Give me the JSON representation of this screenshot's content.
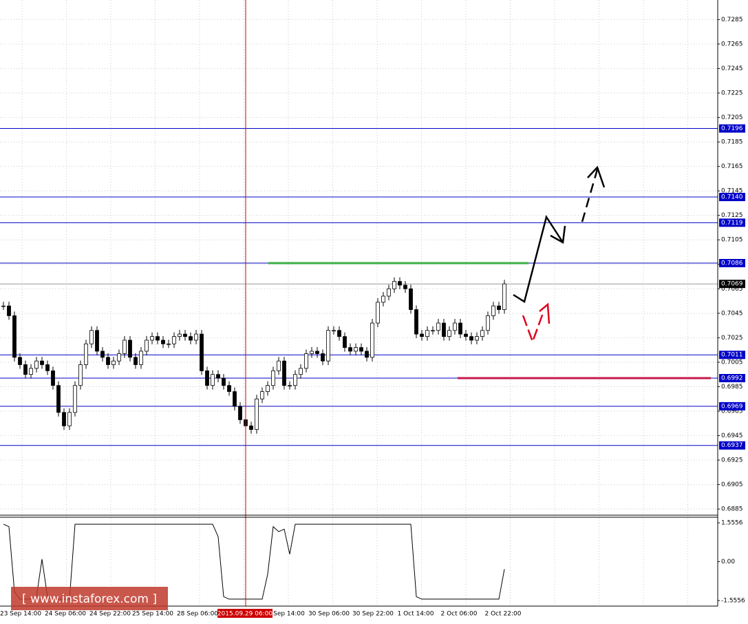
{
  "chart_data": {
    "type": "candlestick",
    "closes": [
      0.7051,
      0.7043,
      0.7009,
      0.7003,
      0.6995,
      0.7,
      0.7006,
      0.7003,
      0.6998,
      0.6986,
      0.6964,
      0.6953,
      0.6964,
      0.6986,
      0.7003,
      0.702,
      0.7031,
      0.7014,
      0.7009,
      0.7003,
      0.7006,
      0.7012,
      0.7023,
      0.7009,
      0.7003,
      0.7014,
      0.7023,
      0.7026,
      0.7023,
      0.702,
      0.702,
      0.7026,
      0.7028,
      0.7026,
      0.7023,
      0.7028,
      0.6998,
      0.6986,
      0.6995,
      0.6992,
      0.6986,
      0.6981,
      0.6969,
      0.6958,
      0.6953,
      0.695,
      0.6975,
      0.6981,
      0.6986,
      0.6998,
      0.7006,
      0.6986,
      0.6986,
      0.6995,
      0.7,
      0.7012,
      0.7014,
      0.7012,
      0.7006,
      0.7031,
      0.7031,
      0.7026,
      0.7017,
      0.7014,
      0.7017,
      0.7014,
      0.7009,
      0.7037,
      0.7054,
      0.7059,
      0.7065,
      0.7071,
      0.7068,
      0.7065,
      0.7048,
      0.7028,
      0.7026,
      0.7031,
      0.7031,
      0.7037,
      0.7026,
      0.7031,
      0.7037,
      0.7028,
      0.7026,
      0.7023,
      0.7026,
      0.7031,
      0.7043,
      0.7051,
      0.7048,
      0.7069
    ],
    "ylim": [
      0.688,
      0.7301
    ],
    "yticks": [
      0.7285,
      0.7265,
      0.7245,
      0.7225,
      0.7205,
      0.7185,
      0.7165,
      0.7145,
      0.7125,
      0.7105,
      0.7085,
      0.7065,
      0.7045,
      0.7025,
      0.7005,
      0.6985,
      0.6965,
      0.6945,
      0.6925,
      0.6905,
      0.6885
    ],
    "levels": [
      0.7196,
      {
        "value": 0.714,
        "label": "0.7140"
      },
      0.7119,
      0.7086,
      0.7011,
      0.6992,
      0.6969,
      0.6937
    ],
    "current_price": 0.7069,
    "resistance": 0.7086,
    "support": 0.6992,
    "x_labels": [
      "23 Sep 14:00",
      "24 Sep 06:00",
      "24 Sep 22:00",
      "25 Sep 14:00",
      "28 Sep 06:00",
      "Sep 14:00",
      "30 Sep 06:00",
      "30 Sep 22:00",
      "1 Oct 14:00",
      "2 Oct 06:00",
      "2 Oct 22:00"
    ],
    "cursor_label": "2015.09.29 06:00",
    "indicator": {
      "values": [
        1.5,
        1.4,
        -1.2,
        -1.5,
        -1.5,
        -1.5,
        -1.4,
        0.1,
        -1.4,
        -1.5,
        -1.5,
        -1.5,
        -1.5,
        1.5,
        1.5,
        1.5,
        1.5,
        1.5,
        1.5,
        1.5,
        1.5,
        1.5,
        1.5,
        1.5,
        1.5,
        1.5,
        1.5,
        1.5,
        1.5,
        1.5,
        1.5,
        1.5,
        1.5,
        1.5,
        1.5,
        1.5,
        1.5,
        1.5,
        1.5,
        1.0,
        -1.4,
        -1.5,
        -1.5,
        -1.5,
        -1.5,
        -1.5,
        -1.5,
        -1.5,
        -0.5,
        1.4,
        1.2,
        1.3,
        0.3,
        1.5,
        1.5,
        1.5,
        1.5,
        1.5,
        1.5,
        1.5,
        1.5,
        1.5,
        1.5,
        1.5,
        1.5,
        1.5,
        1.5,
        1.5,
        1.5,
        1.5,
        1.5,
        1.5,
        1.5,
        1.5,
        1.5,
        -1.4,
        -1.5,
        -1.5,
        -1.5,
        -1.5,
        -1.5,
        -1.5,
        -1.5,
        -1.5,
        -1.5,
        -1.5,
        -1.5,
        -1.5,
        -1.5,
        -1.5,
        -1.5,
        -0.3
      ],
      "ylim": [
        -1.75,
        1.75
      ],
      "yticks": [
        1.5556,
        {
          "value": 0,
          "label": "0.00"
        },
        -1.5556
      ]
    },
    "watermark": "[  www.instaforex.com ]"
  }
}
